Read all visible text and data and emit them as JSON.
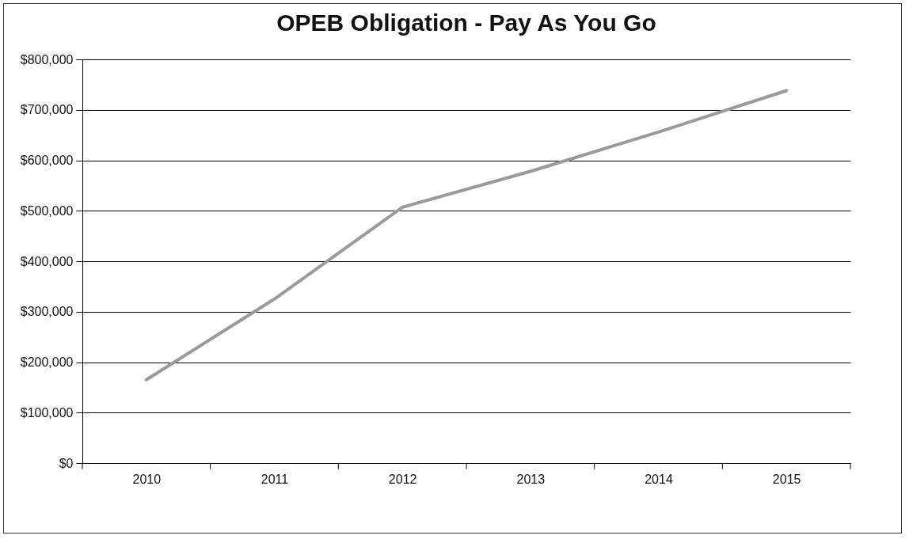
{
  "chart_data": {
    "type": "line",
    "title": "OPEB Obligation - Pay As You Go",
    "categories": [
      "2010",
      "2011",
      "2012",
      "2013",
      "2014",
      "2015"
    ],
    "series": [
      {
        "color": "#9a9a9a",
        "values": [
          165000,
          325000,
          507000,
          578000,
          656000,
          738000
        ]
      }
    ],
    "ylim": [
      0,
      800000
    ],
    "yticks": [
      {
        "value": 0,
        "label": "$0"
      },
      {
        "value": 100000,
        "label": "$100,000"
      },
      {
        "value": 200000,
        "label": "$200,000"
      },
      {
        "value": 300000,
        "label": "$300,000"
      },
      {
        "value": 400000,
        "label": "$400,000"
      },
      {
        "value": 500000,
        "label": "$500,000"
      },
      {
        "value": 600000,
        "label": "$600,000"
      },
      {
        "value": 700000,
        "label": "$700,000"
      },
      {
        "value": 800000,
        "label": "$800,000"
      }
    ],
    "grid": "y",
    "marker": "none",
    "line_style": "solid"
  }
}
